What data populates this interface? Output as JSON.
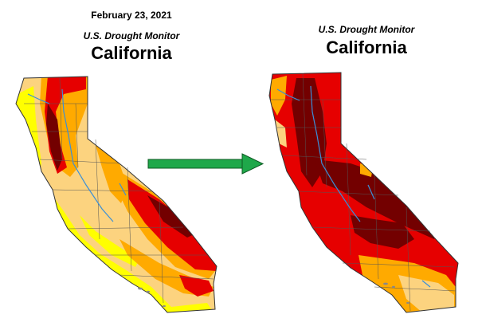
{
  "left_map": {
    "date": "February 23, 2021",
    "subtitle": "U.S. Drought Monitor",
    "title": "California"
  },
  "right_map": {
    "subtitle": "U.S. Drought Monitor",
    "title": "California"
  },
  "colors": {
    "none": "#ffffff",
    "d0_abnormally_dry": "#ffff00",
    "d1_moderate": "#fcd37f",
    "d2_severe": "#ffaa00",
    "d3_extreme": "#e60000",
    "d4_exceptional": "#730000",
    "county_lines": "#555555",
    "rivers": "#3a8fd8",
    "arrow": "#1fa84a"
  },
  "icons": [
    "arrow-right-icon"
  ]
}
